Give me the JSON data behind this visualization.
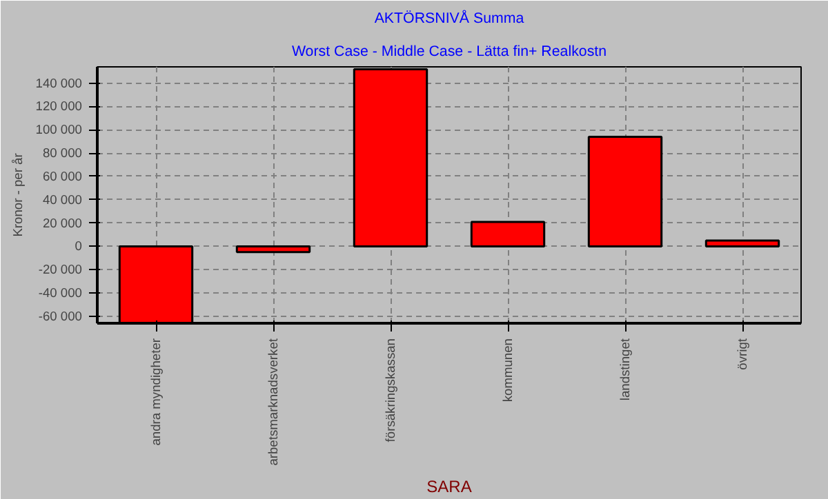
{
  "chart_data": {
    "type": "bar",
    "title": "AKTÖRSNIVÅ Summa",
    "subtitle": "Worst Case - Middle Case - Lätta fin+ Realkostn",
    "xlabel": "SARA",
    "ylabel": "Kronor - per år",
    "categories": [
      "andra myndigheter",
      "arbetsmarknadsverket",
      "försäkringskassan",
      "kommunen",
      "landstinget",
      "övrigt"
    ],
    "values": [
      -66000,
      -5000,
      152000,
      21000,
      94000,
      5000
    ],
    "color": "#ff0000",
    "ylim": [
      -66000,
      154000
    ],
    "yticks": [
      {
        "value": -60000,
        "label": "-60 000"
      },
      {
        "value": -40000,
        "label": "-40 000"
      },
      {
        "value": -20000,
        "label": "-20 000"
      },
      0,
      {
        "value": 20000,
        "label": "20 000"
      },
      {
        "value": 40000,
        "label": "40 000"
      },
      {
        "value": 60000,
        "label": "60 000"
      },
      {
        "value": 80000,
        "label": "80 000"
      },
      {
        "value": 100000,
        "label": "100 000"
      },
      {
        "value": 120000,
        "label": "120 000"
      },
      {
        "value": 140000,
        "label": "140 000"
      }
    ],
    "grid": true,
    "line_style": "dashed"
  }
}
